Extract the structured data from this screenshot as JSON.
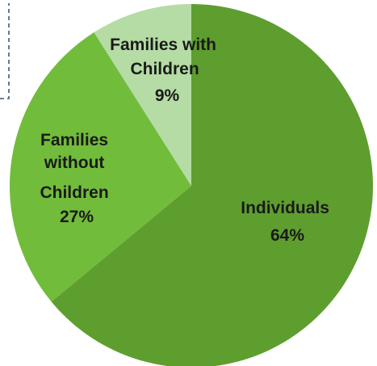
{
  "chart_data": {
    "type": "pie",
    "slices": [
      {
        "label": "Individuals",
        "percent_label": "64%",
        "value": 64,
        "color": "#5e9e2e"
      },
      {
        "label": "Families without Children",
        "percent_label": "27%",
        "value": 27,
        "color": "#72bc3b"
      },
      {
        "label": "Families with Children",
        "percent_label": "9%",
        "value": 9,
        "color": "#b5dca4"
      }
    ],
    "start": "12 o'clock",
    "direction": "clockwise",
    "legend": "none"
  }
}
